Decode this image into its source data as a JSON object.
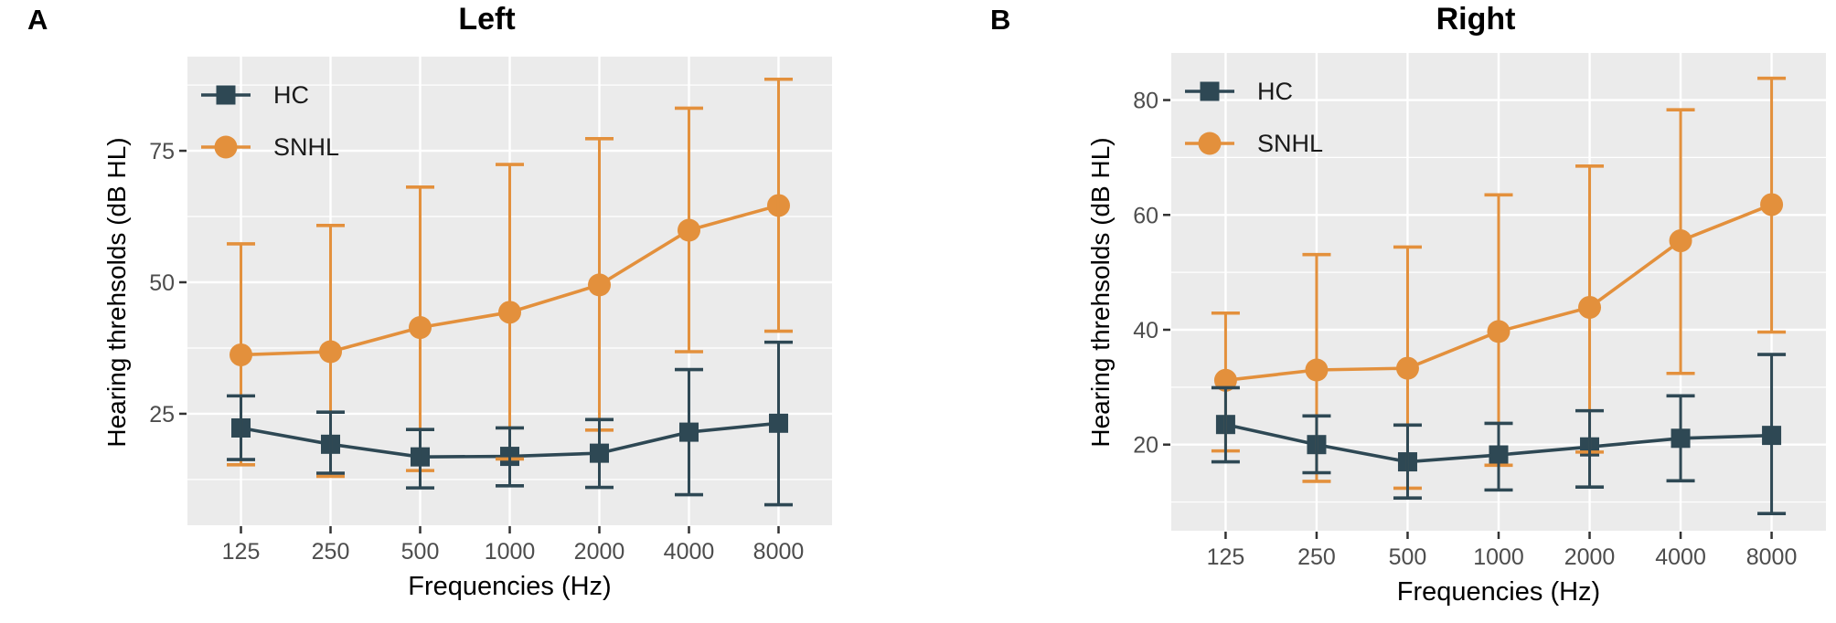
{
  "figure": {
    "background": "#ffffff",
    "panel_bg": "#ebebeb",
    "grid_color": "#ffffff",
    "tick_color": "#333333",
    "tick_label_color": "#4d4d4d",
    "text_color": "#000000"
  },
  "chart_data": [
    {
      "panel_label": "A",
      "title": "Left",
      "type": "line",
      "xlabel": "Frequencies (Hz)",
      "ylabel": "Hearing threhsolds (dB HL)",
      "categories": [
        "125",
        "250",
        "500",
        "1000",
        "2000",
        "4000",
        "8000"
      ],
      "y_ticks": [
        25,
        50,
        75
      ],
      "y_domain": [
        3.8,
        92.9
      ],
      "grid": true,
      "legend_position": "top-left-inside",
      "legend_entries": [
        "HC",
        "SNHL"
      ],
      "series": [
        {
          "name": "HC",
          "marker": "square",
          "color": "#2e4854",
          "values": [
            22.3,
            19.2,
            16.8,
            16.9,
            17.5,
            21.5,
            23.2
          ],
          "upper": [
            28.4,
            25.3,
            22.0,
            22.3,
            23.9,
            33.4,
            38.6
          ],
          "lower": [
            16.3,
            13.7,
            10.9,
            11.3,
            11.0,
            9.6,
            7.7
          ]
        },
        {
          "name": "SNHL",
          "marker": "circle",
          "color": "#e3903c",
          "values": [
            36.2,
            36.8,
            41.4,
            44.3,
            49.5,
            59.9,
            64.6
          ],
          "upper": [
            57.3,
            60.8,
            68.1,
            72.4,
            77.3,
            83.1,
            88.6
          ],
          "lower": [
            15.3,
            13.1,
            14.2,
            16.4,
            21.9,
            36.8,
            40.7
          ]
        }
      ]
    },
    {
      "panel_label": "B",
      "title": "Right",
      "type": "line",
      "xlabel": "Frequencies (Hz)",
      "ylabel": "Hearing threhsolds (dB HL)",
      "categories": [
        "125",
        "250",
        "500",
        "1000",
        "2000",
        "4000",
        "8000"
      ],
      "y_ticks": [
        20,
        40,
        60,
        80
      ],
      "y_domain": [
        5.0,
        88.2
      ],
      "grid": true,
      "legend_position": "top-left-inside",
      "legend_entries": [
        "HC",
        "SNHL"
      ],
      "series": [
        {
          "name": "HC",
          "marker": "square",
          "color": "#2e4854",
          "values": [
            23.5,
            20.0,
            17.0,
            18.2,
            19.6,
            21.1,
            21.6
          ],
          "upper": [
            29.9,
            25.0,
            23.4,
            23.7,
            25.9,
            28.5,
            35.7
          ],
          "lower": [
            17.0,
            15.1,
            10.7,
            12.1,
            12.6,
            13.7,
            8.0
          ]
        },
        {
          "name": "SNHL",
          "marker": "circle",
          "color": "#e3903c",
          "values": [
            31.2,
            33.0,
            33.3,
            39.7,
            43.9,
            55.5,
            61.8
          ],
          "upper": [
            42.9,
            53.1,
            54.4,
            63.5,
            68.5,
            78.3,
            83.8
          ],
          "lower": [
            18.9,
            13.6,
            12.4,
            16.4,
            18.7,
            32.4,
            39.6
          ]
        }
      ]
    }
  ]
}
